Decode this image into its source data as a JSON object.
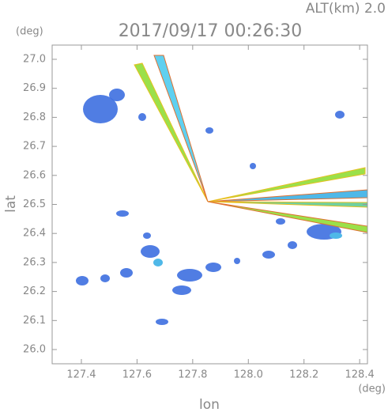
{
  "chart_data": {
    "type": "map",
    "title": "2017/09/17 00:26:30",
    "subtitle": "ALT(km) 2.0",
    "x_label": "lon",
    "y_label": "lat",
    "x_unit": "(deg)",
    "y_unit": "(deg)",
    "xlim": [
      127.295,
      128.428
    ],
    "ylim": [
      25.951,
      27.049
    ],
    "xticks": [
      127.4,
      127.6,
      127.8,
      {
        "value": 128,
        "label": "128.0"
      },
      128.2,
      128.4
    ],
    "yticks": [
      {
        "value": 26,
        "label": "26.0"
      },
      26.1,
      26.2,
      26.3,
      26.4,
      26.5,
      26.6,
      26.7,
      26.8,
      26.9,
      {
        "value": 27,
        "label": "27.0"
      }
    ]
  }
}
